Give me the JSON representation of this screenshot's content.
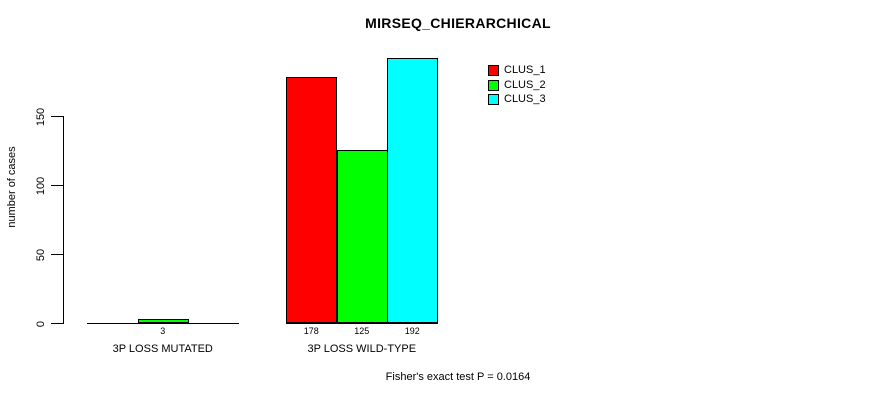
{
  "chart_data": {
    "type": "bar",
    "title": "MIRSEQ_CHIERARCHICAL",
    "ylabel": "number of cases",
    "xlabel": "",
    "categories": [
      "3P LOSS MUTATED",
      "3P LOSS WILD-TYPE"
    ],
    "series": [
      {
        "name": "CLUS_1",
        "color": "#ff0000",
        "values": [
          0,
          178
        ]
      },
      {
        "name": "CLUS_2",
        "color": "#00ff00",
        "values": [
          3,
          125
        ]
      },
      {
        "name": "CLUS_3",
        "color": "#00ffff",
        "values": [
          0,
          192
        ]
      }
    ],
    "bar_value_labels": [
      [
        "",
        "3",
        ""
      ],
      [
        "178",
        "125",
        "192"
      ]
    ],
    "yticks": [
      0,
      50,
      100,
      150
    ],
    "ylim": [
      0,
      195
    ],
    "grid": false,
    "legend": {
      "position": "top-right",
      "entries": [
        "CLUS_1",
        "CLUS_2",
        "CLUS_3"
      ]
    },
    "annotation": "Fisher's exact test P = 0.0164",
    "background": "#ffffff",
    "bar_border_color": "#000000",
    "axis_color": "#000000",
    "text_color": "#000000"
  }
}
